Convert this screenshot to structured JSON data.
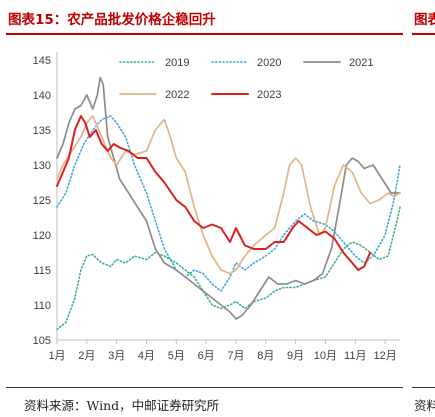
{
  "header": {
    "title": "图表15：农产品批发价格企稳回升",
    "next_title_fragment": "图表"
  },
  "footer": {
    "source": "资料来源：Wind，中邮证券研究所",
    "next_source_fragment": "资料"
  },
  "colors": {
    "title": "#c00000",
    "s2019": "#3cb371",
    "s2020": "#3aa8e0",
    "s2021": "#8c8c8c",
    "s2022": "#e3b487",
    "s2023": "#dc1f1f"
  },
  "chart_data": {
    "type": "line",
    "title": "",
    "xlabel": "",
    "ylabel": "",
    "ylim": [
      105,
      145
    ],
    "yticks": [
      105,
      110,
      115,
      120,
      125,
      130,
      135,
      140,
      145
    ],
    "xlim": [
      1,
      12.5
    ],
    "xticks": [
      {
        "pos": 1,
        "label": "1月"
      },
      {
        "pos": 2,
        "label": "2月"
      },
      {
        "pos": 3,
        "label": "3月"
      },
      {
        "pos": 4,
        "label": "4月"
      },
      {
        "pos": 5,
        "label": "5月"
      },
      {
        "pos": 6,
        "label": "6月"
      },
      {
        "pos": 7,
        "label": "7月"
      },
      {
        "pos": 8,
        "label": "8月"
      },
      {
        "pos": 9,
        "label": "9月"
      },
      {
        "pos": 10,
        "label": "10月"
      },
      {
        "pos": 11,
        "label": "11月"
      },
      {
        "pos": 12,
        "label": "12月"
      }
    ],
    "grid": false,
    "legend_position": "top",
    "series": [
      {
        "name": "2019",
        "color": "#3cb371",
        "style": "dotted",
        "x": [
          1,
          1.3,
          1.6,
          1.8,
          2,
          2.2,
          2.5,
          2.8,
          3,
          3.3,
          3.6,
          4,
          4.3,
          4.6,
          5,
          5.3,
          5.6,
          5.9,
          6.2,
          6.5,
          6.8,
          7,
          7.3,
          7.6,
          8,
          8.3,
          8.6,
          9,
          9.3,
          9.6,
          10,
          10.3,
          10.6,
          10.9,
          11.2,
          11.5,
          11.8,
          12.1,
          12.4,
          12.5
        ],
        "y": [
          106.5,
          107.5,
          111,
          115,
          117,
          117.2,
          116,
          115.5,
          116.5,
          116,
          117,
          116.5,
          117.5,
          117,
          116,
          115,
          114,
          112,
          110,
          109.5,
          110,
          110.5,
          109.5,
          110.5,
          111,
          112,
          112.5,
          112.5,
          113,
          113.5,
          114,
          116,
          118,
          119,
          118.5,
          117.5,
          116.5,
          117,
          122,
          124
        ]
      },
      {
        "name": "2020",
        "color": "#3aa8e0",
        "style": "dotted",
        "x": [
          1,
          1.3,
          1.6,
          1.9,
          2.2,
          2.5,
          2.8,
          3,
          3.3,
          3.6,
          4,
          4.3,
          4.6,
          5,
          5.3,
          5.6,
          5.9,
          6.2,
          6.5,
          6.8,
          7,
          7.3,
          7.6,
          8,
          8.3,
          8.6,
          9,
          9.3,
          9.6,
          10,
          10.3,
          10.6,
          11,
          11.3,
          11.6,
          12,
          12.3,
          12.5
        ],
        "y": [
          124,
          126,
          130,
          133,
          135,
          136.5,
          137,
          136,
          134,
          130,
          126,
          122,
          118,
          115,
          114,
          115,
          114.5,
          113,
          112,
          114,
          116,
          115,
          116,
          117,
          118,
          120,
          122,
          123,
          122,
          121.5,
          120.5,
          119,
          117,
          116,
          117,
          120,
          125,
          130
        ]
      },
      {
        "name": "2021",
        "color": "#8c8c8c",
        "style": "solid",
        "x": [
          1,
          1.2,
          1.4,
          1.6,
          1.8,
          2,
          2.2,
          2.35,
          2.45,
          2.55,
          2.7,
          2.9,
          3.1,
          3.4,
          3.7,
          4,
          4.3,
          4.6,
          5,
          5.3,
          5.6,
          5.9,
          6.2,
          6.5,
          6.8,
          7,
          7.2,
          7.5,
          7.8,
          8.1,
          8.4,
          8.7,
          9,
          9.3,
          9.6,
          9.9,
          10.2,
          10.5,
          10.7,
          10.9,
          11.1,
          11.3,
          11.6,
          11.9,
          12.2,
          12.5
        ],
        "y": [
          131,
          133,
          136,
          138,
          138.5,
          140,
          138,
          140,
          142.5,
          141.5,
          134,
          131,
          128,
          126,
          124,
          122,
          118,
          116,
          115,
          114,
          113,
          112,
          111,
          110,
          109,
          108,
          108.5,
          110,
          112,
          114,
          113,
          113,
          113.5,
          113,
          113.5,
          114.5,
          118,
          125,
          130,
          131,
          130.5,
          129.5,
          130,
          128,
          126,
          126
        ]
      },
      {
        "name": "2022",
        "color": "#e3b487",
        "style": "solid",
        "x": [
          1,
          1.2,
          1.5,
          1.8,
          2,
          2.2,
          2.5,
          2.8,
          3,
          3.3,
          3.6,
          4,
          4.3,
          4.6,
          4.8,
          5,
          5.3,
          5.6,
          5.9,
          6.2,
          6.5,
          6.8,
          7,
          7.3,
          7.6,
          8,
          8.3,
          8.6,
          8.8,
          9,
          9.2,
          9.5,
          9.8,
          10,
          10.3,
          10.6,
          10.9,
          11.2,
          11.5,
          11.8,
          12.1,
          12.3,
          12.5
        ],
        "y": [
          128,
          130,
          132,
          134,
          136,
          137,
          134,
          131,
          130,
          132,
          131.5,
          132,
          135,
          136.5,
          134,
          131,
          129,
          124,
          120,
          117,
          115,
          114.5,
          115,
          117,
          118.5,
          120,
          121,
          126,
          130,
          131,
          130,
          124,
          120,
          121,
          127,
          130,
          129,
          126,
          124.5,
          125,
          126,
          125.5,
          126
        ]
      },
      {
        "name": "2023",
        "color": "#dc1f1f",
        "style": "solid",
        "x": [
          1,
          1.2,
          1.4,
          1.6,
          1.8,
          1.95,
          2.1,
          2.3,
          2.5,
          2.7,
          2.9,
          3.1,
          3.4,
          3.7,
          4,
          4.3,
          4.6,
          5,
          5.3,
          5.6,
          5.9,
          6.2,
          6.5,
          6.8,
          7,
          7.3,
          7.6,
          8,
          8.3,
          8.6,
          8.9,
          9.1,
          9.4,
          9.7,
          10,
          10.3,
          10.6,
          10.9,
          11.1,
          11.3,
          11.5
        ],
        "y": [
          127,
          129,
          131,
          135,
          137,
          136,
          134,
          135,
          133,
          132,
          133,
          132.5,
          132,
          131,
          131,
          129,
          127.5,
          125,
          124,
          122,
          121,
          121.5,
          121,
          119,
          121,
          118.5,
          118,
          118,
          119,
          119,
          121,
          122,
          121,
          120,
          120.5,
          119.5,
          117.5,
          116,
          115,
          115.5,
          117.5
        ]
      }
    ]
  }
}
